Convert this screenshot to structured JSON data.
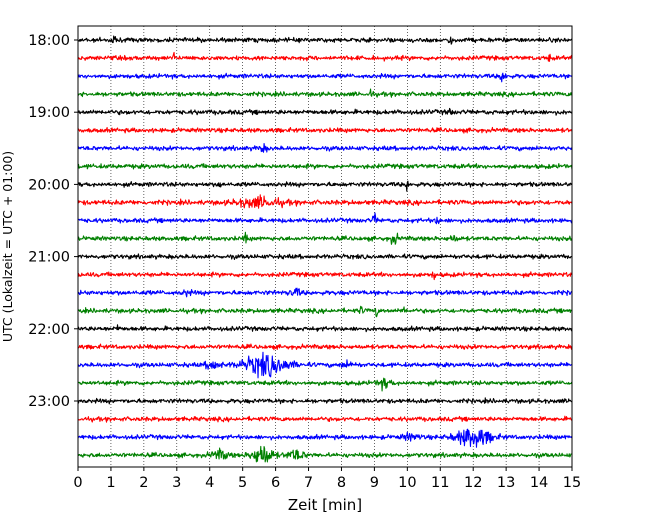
{
  "chart_data": {
    "type": "line",
    "title": "",
    "xlabel": "Zeit  [min]",
    "ylabel": "UTC (Lokalzeit = UTC + 01:00)",
    "xlim": [
      0,
      15
    ],
    "x_ticks": [
      0,
      1,
      2,
      3,
      4,
      5,
      6,
      7,
      8,
      9,
      10,
      11,
      12,
      13,
      14,
      15
    ],
    "x_tick_labels": [
      "0",
      "1",
      "2",
      "3",
      "4",
      "5",
      "6",
      "7",
      "8",
      "9",
      "10",
      "11",
      "12",
      "13",
      "14",
      "15"
    ],
    "y_tick_labels": [
      "18:00",
      "19:00",
      "20:00",
      "21:00",
      "22:00",
      "23:00"
    ],
    "grid": "vertical dotted",
    "trace_colors": [
      "#000000",
      "#ff0000",
      "#0000ff",
      "#008000"
    ],
    "traces": [
      {
        "start": "18:00",
        "color": "#000000",
        "amplitude": 1.0,
        "events": [
          {
            "t": 1.1,
            "amp": 2.2,
            "dur": 0.15
          },
          {
            "t": 11.3,
            "amp": 2.5,
            "dur": 0.1
          }
        ]
      },
      {
        "start": "18:15",
        "color": "#ff0000",
        "amplitude": 1.0,
        "events": [
          {
            "t": 2.9,
            "amp": 2.2,
            "dur": 0.1
          },
          {
            "t": 14.3,
            "amp": 1.8,
            "dur": 0.1
          }
        ]
      },
      {
        "start": "18:30",
        "color": "#0000ff",
        "amplitude": 1.0,
        "events": [
          {
            "t": 12.9,
            "amp": 2.6,
            "dur": 0.2
          }
        ]
      },
      {
        "start": "18:45",
        "color": "#008000",
        "amplitude": 1.0,
        "events": [
          {
            "t": 8.9,
            "amp": 2.6,
            "dur": 0.08
          }
        ]
      },
      {
        "start": "19:00",
        "color": "#000000",
        "amplitude": 1.05,
        "events": [
          {
            "t": 11.3,
            "amp": 2.0,
            "dur": 0.1
          }
        ]
      },
      {
        "start": "19:15",
        "color": "#ff0000",
        "amplitude": 1.0,
        "events": []
      },
      {
        "start": "19:30",
        "color": "#0000ff",
        "amplitude": 1.0,
        "events": [
          {
            "t": 5.6,
            "amp": 1.8,
            "dur": 0.3
          }
        ]
      },
      {
        "start": "19:45",
        "color": "#008000",
        "amplitude": 1.05,
        "events": []
      },
      {
        "start": "20:00",
        "color": "#000000",
        "amplitude": 1.0,
        "events": [
          {
            "t": 10.0,
            "amp": 3.2,
            "dur": 0.08
          },
          {
            "t": 4.3,
            "amp": 1.8,
            "dur": 0.1
          }
        ]
      },
      {
        "start": "20:15",
        "color": "#ff0000",
        "amplitude": 1.1,
        "events": [
          {
            "t": 5.5,
            "amp": 2.2,
            "dur": 1.3
          }
        ]
      },
      {
        "start": "20:30",
        "color": "#0000ff",
        "amplitude": 1.0,
        "events": [
          {
            "t": 9.0,
            "amp": 4.0,
            "dur": 0.08
          },
          {
            "t": 10.9,
            "amp": 1.8,
            "dur": 0.15
          }
        ]
      },
      {
        "start": "20:45",
        "color": "#008000",
        "amplitude": 1.0,
        "events": [
          {
            "t": 5.1,
            "amp": 2.4,
            "dur": 0.1
          },
          {
            "t": 9.6,
            "amp": 2.6,
            "dur": 0.2
          },
          {
            "t": 11.4,
            "amp": 1.7,
            "dur": 0.3
          }
        ]
      },
      {
        "start": "21:00",
        "color": "#000000",
        "amplitude": 1.0,
        "events": []
      },
      {
        "start": "21:15",
        "color": "#ff0000",
        "amplitude": 1.0,
        "events": [
          {
            "t": 10.8,
            "amp": 2.0,
            "dur": 0.1
          }
        ]
      },
      {
        "start": "21:30",
        "color": "#0000ff",
        "amplitude": 1.05,
        "events": [
          {
            "t": 3.3,
            "amp": 1.8,
            "dur": 0.2
          },
          {
            "t": 6.6,
            "amp": 2.0,
            "dur": 0.3
          }
        ]
      },
      {
        "start": "21:45",
        "color": "#008000",
        "amplitude": 1.0,
        "events": [
          {
            "t": 8.6,
            "amp": 2.0,
            "dur": 0.1
          },
          {
            "t": 9.05,
            "amp": 3.2,
            "dur": 0.08
          },
          {
            "t": 9.9,
            "amp": 2.4,
            "dur": 0.08
          }
        ]
      },
      {
        "start": "22:00",
        "color": "#000000",
        "amplitude": 1.0,
        "events": [
          {
            "t": 1.2,
            "amp": 2.0,
            "dur": 0.1
          }
        ]
      },
      {
        "start": "22:15",
        "color": "#ff0000",
        "amplitude": 1.0,
        "events": []
      },
      {
        "start": "22:30",
        "color": "#0000ff",
        "amplitude": 1.0,
        "events": [
          {
            "t": 4.1,
            "amp": 2.4,
            "dur": 0.4
          },
          {
            "t": 5.7,
            "amp": 4.0,
            "dur": 1.3
          },
          {
            "t": 8.2,
            "amp": 1.8,
            "dur": 0.4
          }
        ]
      },
      {
        "start": "22:45",
        "color": "#008000",
        "amplitude": 1.0,
        "events": [
          {
            "t": 9.3,
            "amp": 2.2,
            "dur": 0.4
          }
        ]
      },
      {
        "start": "23:00",
        "color": "#000000",
        "amplitude": 1.0,
        "events": []
      },
      {
        "start": "23:15",
        "color": "#ff0000",
        "amplitude": 1.0,
        "events": []
      },
      {
        "start": "23:30",
        "color": "#0000ff",
        "amplitude": 1.0,
        "events": [
          {
            "t": 10.1,
            "amp": 1.8,
            "dur": 0.5
          },
          {
            "t": 12.0,
            "amp": 3.8,
            "dur": 1.0
          }
        ]
      },
      {
        "start": "23:45",
        "color": "#008000",
        "amplitude": 1.0,
        "events": [
          {
            "t": 4.3,
            "amp": 2.2,
            "dur": 0.5
          },
          {
            "t": 5.6,
            "amp": 4.0,
            "dur": 0.6
          },
          {
            "t": 6.6,
            "amp": 2.4,
            "dur": 0.5
          }
        ]
      }
    ]
  }
}
